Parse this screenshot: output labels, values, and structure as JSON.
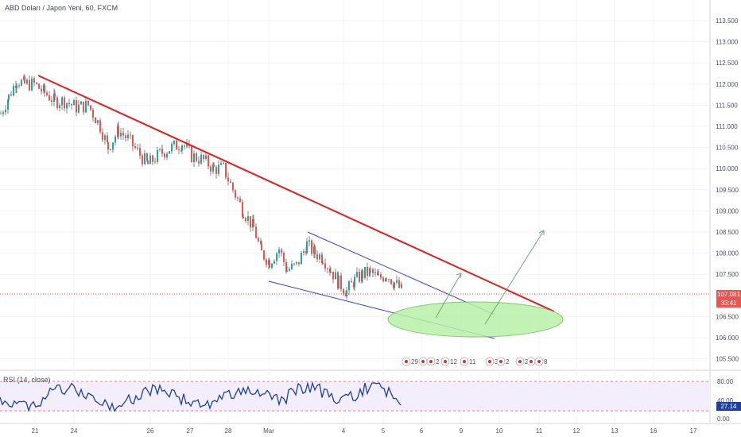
{
  "header": {
    "symbol_title": "ABD Doları / Japon Yeni, 60, FXCM"
  },
  "price_axis": {
    "ticks": [
      "113.500",
      "113.000",
      "112.500",
      "112.000",
      "111.500",
      "111.000",
      "110.500",
      "110.000",
      "109.500",
      "109.000",
      "108.500",
      "108.000",
      "107.500",
      "107.000",
      "106.500",
      "106.000",
      "105.500"
    ],
    "last_price": "107.081",
    "countdown": "33:41"
  },
  "rsi": {
    "label": "RSI (14, close)",
    "ticks": [
      "80.00",
      "40.00",
      "0.00"
    ],
    "value": "27.14"
  },
  "time_axis": {
    "ticks": [
      "21",
      "24",
      "26",
      "27",
      "28",
      "Mar",
      "4",
      "5",
      "6",
      "9",
      "10",
      "11",
      "12",
      "13",
      "16",
      "17"
    ]
  },
  "events": [
    "29",
    "5",
    "2",
    "12",
    "11",
    "3",
    "2",
    "2",
    "22",
    "8"
  ],
  "colors": {
    "up": "#26a69a",
    "down": "#ef5350",
    "candle_wick": "#333333",
    "trendline_main": "#e21f1f",
    "channel": "#3a3fd8",
    "projection": "#6fa86f",
    "target_zone_fill": "#b8f0a8",
    "target_zone_stroke": "#6fbf5f",
    "rsi_line": "#1f3fa0",
    "rsi_band": "#e06060",
    "price_tag": "#ef5350",
    "axis_text": "#4c525e"
  },
  "chart_data": {
    "type": "candlestick",
    "price_axis_range": [
      105.3,
      113.8
    ],
    "rsi_range": [
      0,
      100
    ],
    "annotations": [
      "descending red trendline",
      "falling wedge channel (blue)",
      "green target ellipse",
      "two projected breakout arrows"
    ],
    "last_price": 107.081,
    "rsi_last": 27.14
  }
}
